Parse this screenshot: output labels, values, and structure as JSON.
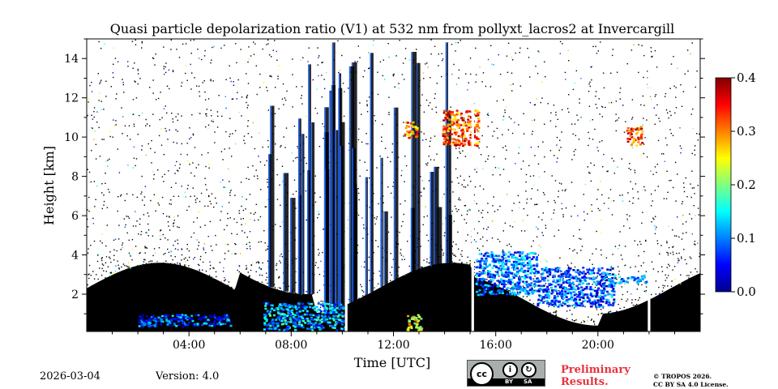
{
  "chart_data": {
    "type": "heatmap",
    "title": "Quasi particle depolarization ratio (V1) at 532 nm from pollyxt_lacros2 at Invercargill",
    "xlabel": "Time [UTC]",
    "ylabel": "Height [km]",
    "xlim": [
      0,
      24
    ],
    "ylim": [
      0.1,
      15
    ],
    "x_ticks": [
      4,
      8,
      12,
      16,
      20
    ],
    "x_tick_labels": [
      "04:00",
      "08:00",
      "12:00",
      "16:00",
      "20:00"
    ],
    "y_ticks": [
      2,
      4,
      6,
      8,
      10,
      12,
      14
    ],
    "y_tick_labels": [
      "2",
      "4",
      "6",
      "8",
      "10",
      "12",
      "14"
    ],
    "colorbar": {
      "min": 0.0,
      "max": 0.4,
      "ticks": [
        0.0,
        0.1,
        0.2,
        0.3,
        0.4
      ],
      "tick_labels": [
        "0.0",
        "0.1",
        "0.2",
        "0.3",
        "0.4"
      ],
      "colormap": "jet"
    },
    "data_gaps_utc": [
      [
        10.1,
        10.2
      ],
      [
        15.05,
        15.15
      ],
      [
        21.95,
        22.05
      ]
    ],
    "cloud_features": [
      {
        "name": "low-layer-03h",
        "t_start": 2.0,
        "t_end": 5.6,
        "h_low": 0.4,
        "h_high": 1.0,
        "value": 0.08
      },
      {
        "name": "low-layer-08h",
        "t_start": 6.9,
        "t_end": 10.1,
        "h_low": 0.2,
        "h_high": 1.6,
        "value": 0.12
      },
      {
        "name": "low-layer-12h",
        "t_start": 12.5,
        "t_end": 13.1,
        "h_low": 0.1,
        "h_high": 1.0,
        "value": 0.25
      },
      {
        "name": "cirrus-13h",
        "t_start": 13.9,
        "t_end": 15.3,
        "h_low": 9.6,
        "h_high": 11.4,
        "value": 0.32
      },
      {
        "name": "cirrus-12h",
        "t_start": 12.4,
        "t_end": 12.9,
        "h_low": 10.0,
        "h_high": 10.8,
        "value": 0.3
      },
      {
        "name": "cirrus-21h",
        "t_start": 21.1,
        "t_end": 21.7,
        "h_low": 9.6,
        "h_high": 10.6,
        "value": 0.33
      },
      {
        "name": "mid-layer-16h",
        "t_start": 15.2,
        "t_end": 17.6,
        "h_low": 2.0,
        "h_high": 4.2,
        "value": 0.1
      },
      {
        "name": "mid-layer-19h",
        "t_start": 17.6,
        "t_end": 20.6,
        "h_low": 1.4,
        "h_high": 3.4,
        "value": 0.08
      },
      {
        "name": "mid-layer-21h",
        "t_start": 20.6,
        "t_end": 21.9,
        "h_low": 2.6,
        "h_high": 3.0,
        "value": 0.12
      }
    ]
  },
  "footer": {
    "date": "2026-03-04",
    "version": "Version: 4.0",
    "cc_by": "BY",
    "cc_sa": "SA",
    "preliminary": [
      "Preliminary",
      "Results."
    ],
    "license": [
      "© TROPOS 2026.",
      "CC BY SA 4.0 License."
    ]
  }
}
